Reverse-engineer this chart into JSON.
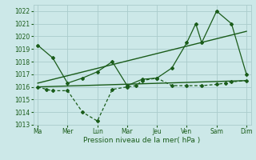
{
  "xlabel": "Pression niveau de la mer( hPa )",
  "bg_color": "#cce8e8",
  "grid_color": "#aacccc",
  "line_color": "#1a5c1a",
  "ylim": [
    1013,
    1022.5
  ],
  "yticks": [
    1013,
    1014,
    1015,
    1016,
    1017,
    1018,
    1019,
    1020,
    1021,
    1022
  ],
  "xtick_labels": [
    "Ma",
    "Mer",
    "Lun",
    "Mar",
    "Jeu",
    "Ven",
    "Sam",
    "Dim"
  ],
  "xtick_positions": [
    0,
    1,
    2,
    3,
    4,
    5,
    6,
    7
  ],
  "xlim": [
    -0.15,
    7.15
  ],
  "series1_x": [
    0,
    0.5,
    1,
    1.5,
    2,
    2.5,
    3,
    3.5,
    4,
    4.5,
    5,
    5.3,
    5.5,
    6,
    6.5,
    7
  ],
  "series1_y": [
    1019.3,
    1018.3,
    1016.3,
    1016.7,
    1017.2,
    1018.0,
    1016.1,
    1016.6,
    1016.7,
    1017.5,
    1019.5,
    1021.0,
    1019.5,
    1022.0,
    1021.0,
    1017.0
  ],
  "series2_x": [
    0,
    0.3,
    0.5,
    1,
    1.5,
    2,
    2.5,
    3,
    3.3,
    3.5,
    4,
    4.5,
    5,
    5.5,
    6,
    6.3,
    6.5,
    7
  ],
  "series2_y": [
    1016.0,
    1015.8,
    1015.7,
    1015.7,
    1014.0,
    1013.3,
    1015.8,
    1016.0,
    1016.1,
    1016.5,
    1016.7,
    1016.1,
    1016.1,
    1016.1,
    1016.2,
    1016.3,
    1016.4,
    1016.5
  ],
  "series3_x": [
    0,
    7
  ],
  "series3_y": [
    1016.0,
    1016.5
  ],
  "series4_x": [
    0,
    7
  ],
  "series4_y": [
    1016.3,
    1020.4
  ]
}
